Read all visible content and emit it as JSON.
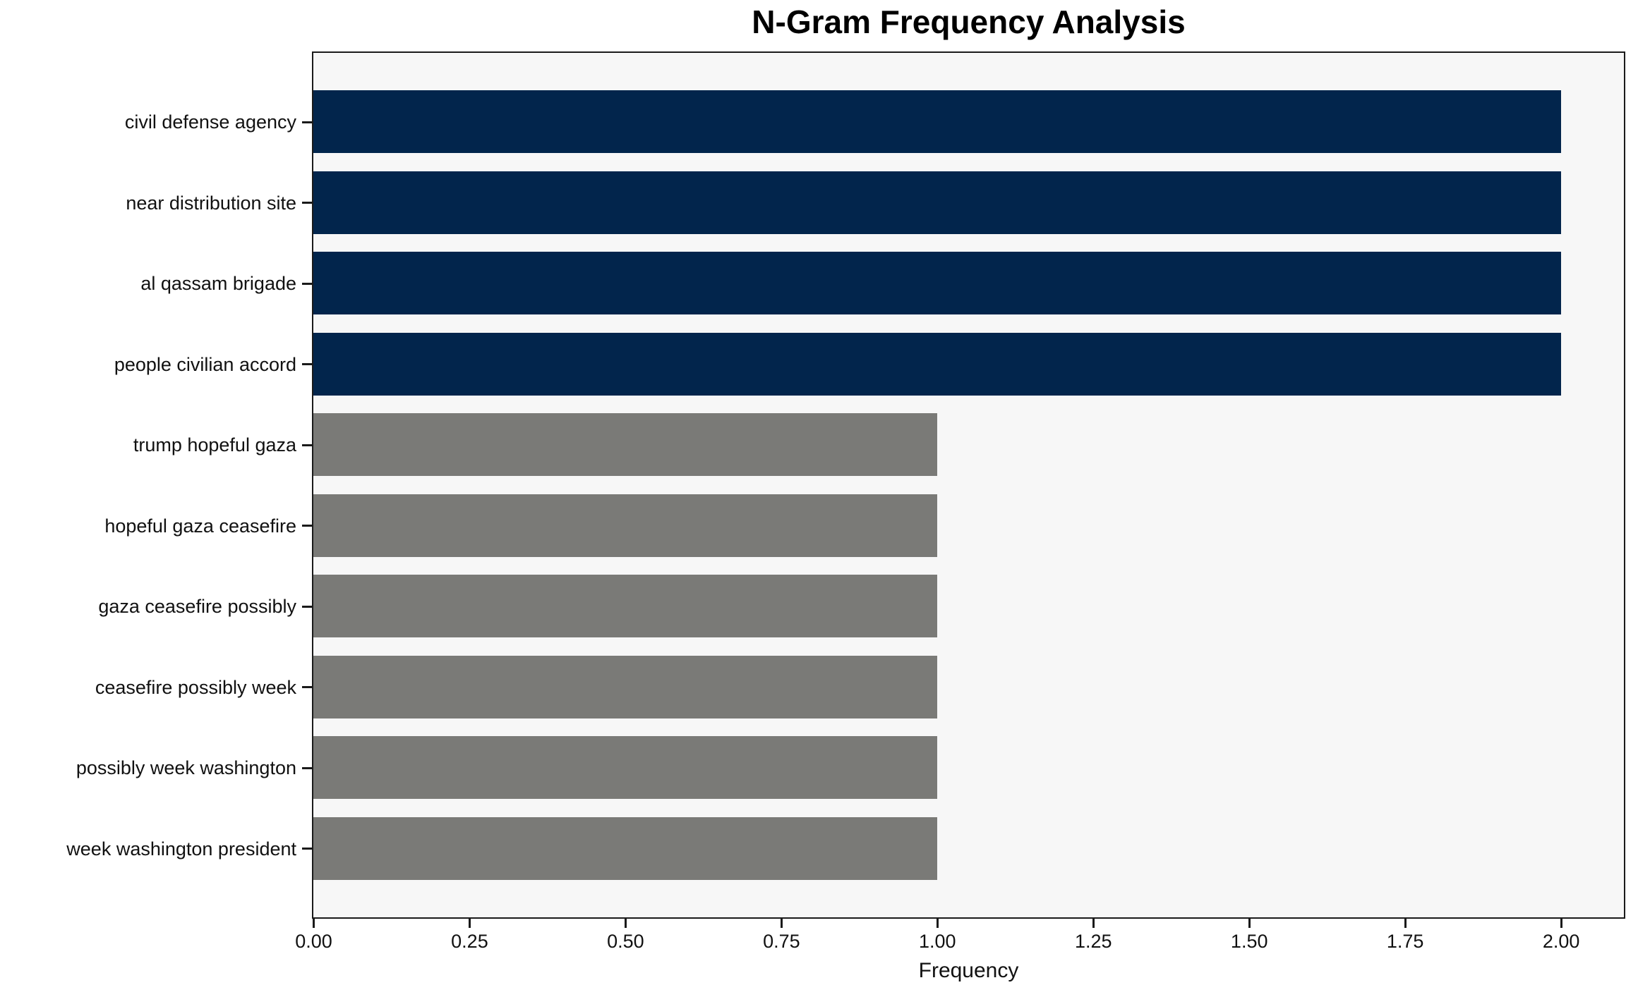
{
  "figure": {
    "title": "N-Gram Frequency Analysis",
    "xlabel": "Frequency"
  },
  "chart_data": {
    "type": "bar",
    "orientation": "horizontal",
    "title": "N-Gram Frequency Analysis",
    "xlabel": "Frequency",
    "ylabel": "",
    "categories": [
      "civil defense agency",
      "near distribution site",
      "al qassam brigade",
      "people civilian accord",
      "trump hopeful gaza",
      "hopeful gaza ceasefire",
      "gaza ceasefire possibly",
      "ceasefire possibly week",
      "possibly week washington",
      "week washington president"
    ],
    "values": [
      2,
      2,
      2,
      2,
      1,
      1,
      1,
      1,
      1,
      1
    ],
    "bar_colors": [
      "#02254c",
      "#02254c",
      "#02254c",
      "#02254c",
      "#7a7a77",
      "#7a7a77",
      "#7a7a77",
      "#7a7a77",
      "#7a7a77",
      "#7a7a77"
    ],
    "x_tick_labels": [
      "0.00",
      "0.25",
      "0.50",
      "0.75",
      "1.00",
      "1.25",
      "1.50",
      "1.75",
      "2.00"
    ],
    "x_tick_values": [
      0,
      0.25,
      0.5,
      0.75,
      1.0,
      1.25,
      1.5,
      1.75,
      2.0
    ],
    "xlim": [
      0,
      2.1
    ],
    "legend": "none",
    "grid": false,
    "colors": {
      "bar_high": "#02254c",
      "bar_low": "#7a7a77",
      "plot_background": "#f7f7f7",
      "figure_background": "#ffffff",
      "spine": "#1a1a1a",
      "text": "#111111"
    }
  }
}
